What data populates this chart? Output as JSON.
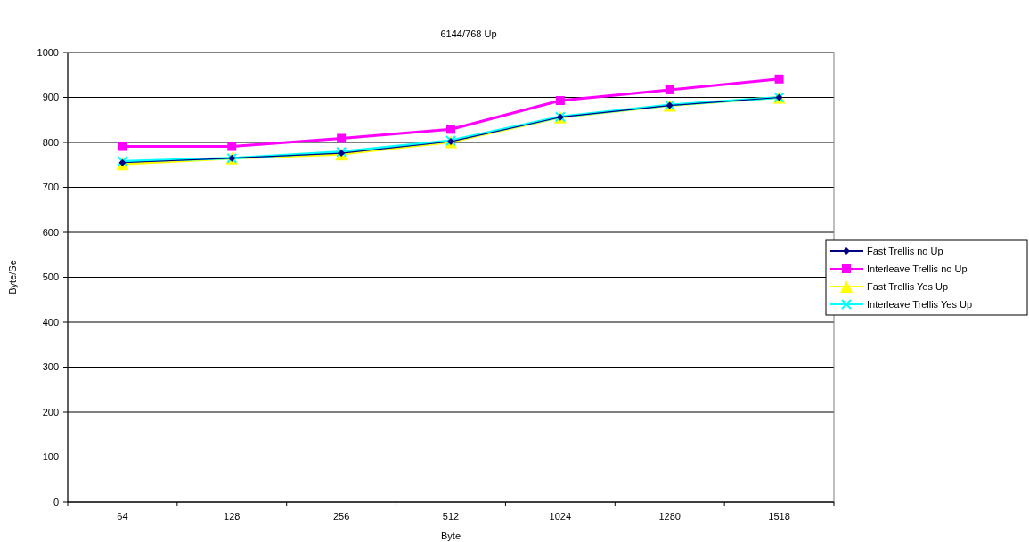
{
  "chart_data": {
    "type": "line",
    "title": "6144/768 Up",
    "xlabel": "Byte",
    "ylabel": "Byte/Se",
    "categories": [
      "64",
      "128",
      "256",
      "512",
      "1024",
      "1280",
      "1518"
    ],
    "series": [
      {
        "name": "Fast Trellis no Up",
        "color": "#000080",
        "marker": "diamond",
        "values": [
          755,
          765,
          776,
          802,
          856,
          882,
          900
        ]
      },
      {
        "name": "Interleave Trellis no Up",
        "color": "#ff00ff",
        "marker": "square",
        "values": [
          791,
          791,
          809,
          829,
          893,
          917,
          941
        ]
      },
      {
        "name": "Fast Trellis Yes Up",
        "color": "#ffff00",
        "marker": "triangle",
        "values": [
          752,
          765,
          774,
          801,
          856,
          882,
          900
        ]
      },
      {
        "name": "Interleave Trellis Yes Up",
        "color": "#00ffff",
        "marker": "cross",
        "values": [
          758,
          765,
          779,
          804,
          857,
          883,
          900
        ]
      }
    ],
    "ylim": [
      0,
      1000
    ],
    "yticks": [
      0,
      100,
      200,
      300,
      400,
      500,
      600,
      700,
      800,
      900,
      1000
    ],
    "grid": "y",
    "legend": "right"
  }
}
